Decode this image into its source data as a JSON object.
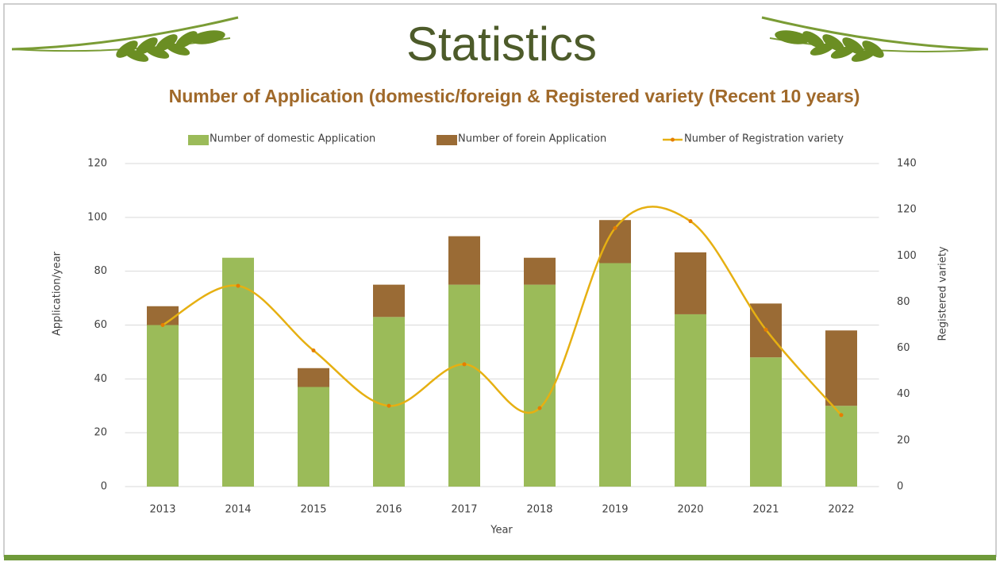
{
  "slide_title": "Statistics",
  "chart_data": {
    "type": "bar",
    "title": "Number of Application (domestic/foreign & Registered variety (Recent 10 years)",
    "x_label": "Year",
    "y_label": "Application/year",
    "y2_label": "Registered variety",
    "categories": [
      "2013",
      "2014",
      "2015",
      "2016",
      "2017",
      "2018",
      "2019",
      "2020",
      "2021",
      "2022"
    ],
    "stacked": true,
    "grid": true,
    "legend": "top",
    "ylim": [
      0,
      120
    ],
    "yticks": [
      0,
      20,
      40,
      60,
      80,
      100,
      120
    ],
    "y2lim": [
      0,
      140
    ],
    "y2ticks": [
      0,
      20,
      40,
      60,
      80,
      100,
      120,
      140
    ],
    "series": [
      {
        "name": "Number of domestic Application",
        "type": "bar",
        "color": "#9bbb59",
        "values": [
          60,
          85,
          37,
          63,
          75,
          75,
          83,
          64,
          48,
          30
        ]
      },
      {
        "name": "Number of forein Application",
        "type": "bar",
        "color": "#9a6b35",
        "values": [
          7,
          0,
          7,
          12,
          18,
          10,
          16,
          23,
          20,
          28
        ]
      },
      {
        "name": "Number of Registration variety",
        "type": "line",
        "axis": "y2",
        "color": "#e6b012",
        "marker_color": "#e67e00",
        "smooth": true,
        "values": [
          70,
          87,
          59,
          35,
          53,
          34,
          112,
          115,
          68,
          31
        ]
      }
    ]
  }
}
